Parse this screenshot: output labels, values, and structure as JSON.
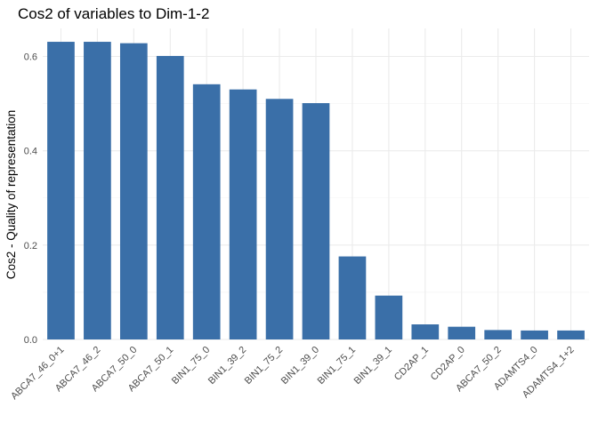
{
  "chart_data": {
    "type": "bar",
    "title": "Cos2 of variables to Dim-1-2",
    "xlabel": "",
    "ylabel": "Cos2 - Quality of representation",
    "categories": [
      "ABCA7_46_0+1",
      "ABCA7_46_2",
      "ABCA7_50_0",
      "ABCA7_50_1",
      "BIN1_75_0",
      "BIN1_39_2",
      "BIN1_75_2",
      "BIN1_39_0",
      "BIN1_75_1",
      "BIN1_39_1",
      "CD2AP_1",
      "CD2AP_0",
      "ABCA7_50_2",
      "ADAMTS4_0",
      "ADAMTS4_1+2"
    ],
    "values": [
      0.631,
      0.631,
      0.628,
      0.601,
      0.541,
      0.53,
      0.51,
      0.501,
      0.176,
      0.093,
      0.032,
      0.027,
      0.02,
      0.019,
      0.019
    ],
    "ylim": [
      0,
      0.6
    ],
    "yticks": [
      0.0,
      0.2,
      0.4,
      0.6
    ],
    "ytick_labels": [
      "0.0",
      "0.2",
      "0.4",
      "0.6"
    ],
    "bar_color": "#3a6fa8",
    "grid": true,
    "gridline_color": "#ebebeb",
    "legend": "none"
  }
}
